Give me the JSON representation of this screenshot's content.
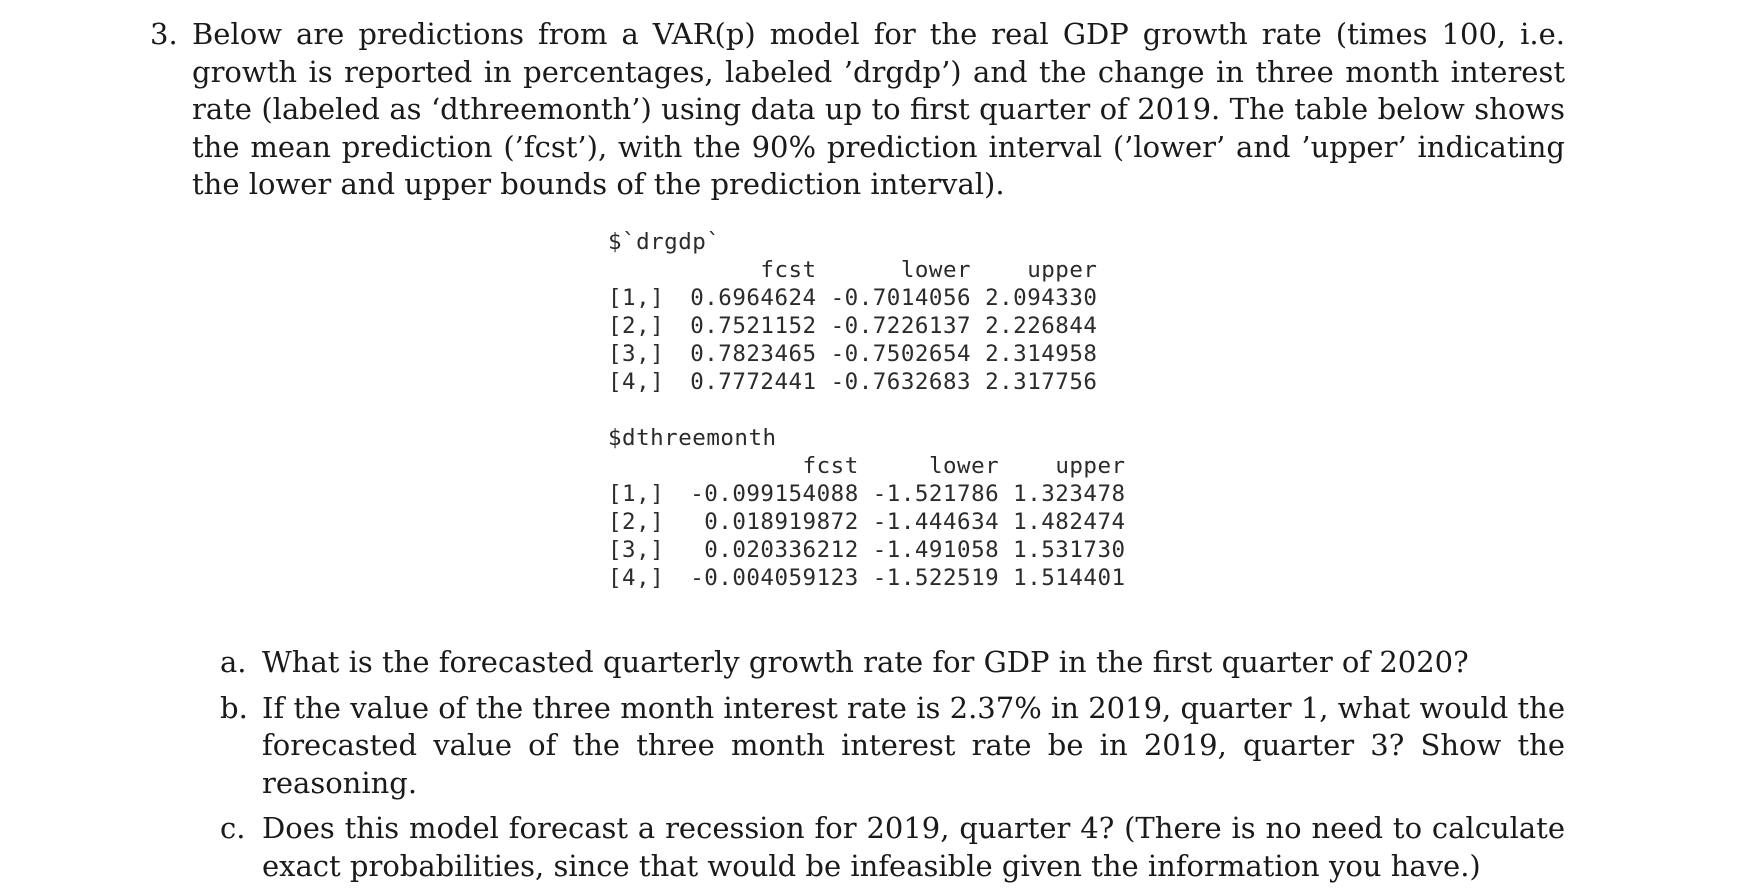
{
  "question": {
    "number": "3.",
    "intro": "Below are predictions from a VAR(p) model for the real GDP growth rate (times 100, i.e. growth is reported in percentages, labeled ’drgdp’) and the change in three month interest rate (labeled as ‘dthreemonth’) using data up to first quarter of 2019. The table below shows the mean prediction (’fcst’), with the 90% prediction interval (’lower’ and ’upper’ indicating the lower and upper bounds of the prediction interval)."
  },
  "output": {
    "drgdp": {
      "header": "$`drgdp`",
      "columns": [
        "fcst",
        "lower",
        "upper"
      ],
      "rows": [
        {
          "idx": "[1,]",
          "fcst": "0.6964624",
          "lower": "-0.7014056",
          "upper": "2.094330"
        },
        {
          "idx": "[2,]",
          "fcst": "0.7521152",
          "lower": "-0.7226137",
          "upper": "2.226844"
        },
        {
          "idx": "[3,]",
          "fcst": "0.7823465",
          "lower": "-0.7502654",
          "upper": "2.314958"
        },
        {
          "idx": "[4,]",
          "fcst": "0.7772441",
          "lower": "-0.7632683",
          "upper": "2.317756"
        }
      ]
    },
    "dthreemonth": {
      "header": "$dthreemonth",
      "columns": [
        "fcst",
        "lower",
        "upper"
      ],
      "rows": [
        {
          "idx": "[1,]",
          "fcst": "-0.099154088",
          "lower": "-1.521786",
          "upper": "1.323478"
        },
        {
          "idx": "[2,]",
          "fcst": "0.018919872",
          "lower": "-1.444634",
          "upper": "1.482474"
        },
        {
          "idx": "[3,]",
          "fcst": "0.020336212",
          "lower": "-1.491058",
          "upper": "1.531730"
        },
        {
          "idx": "[4,]",
          "fcst": "-0.004059123",
          "lower": "-1.522519",
          "upper": "1.514401"
        }
      ]
    }
  },
  "parts": [
    {
      "label": "a.",
      "text": "What is the forecasted quarterly growth rate for GDP in the first quarter of 2020?"
    },
    {
      "label": "b.",
      "text": "If the value of the three month interest rate is 2.37% in 2019, quarter 1, what would the forecasted value of the three month interest rate be in 2019, quarter 3? Show the reasoning."
    },
    {
      "label": "c.",
      "text": "Does this model forecast a recession for 2019, quarter 4? (There is no need to calculate exact probabilities, since that would be infeasible given the information you have.)"
    }
  ]
}
